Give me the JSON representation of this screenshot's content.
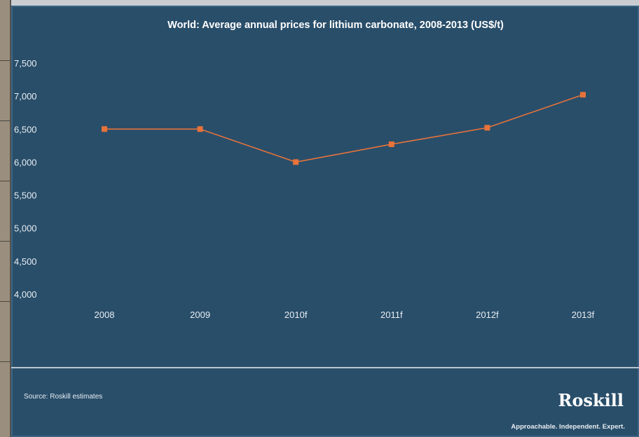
{
  "chart_data": {
    "type": "line",
    "title": "World: Average annual prices for lithium carbonate, 2008-2013 (US$/t)",
    "categories": [
      "2008",
      "2009",
      "2010f",
      "2011f",
      "2012f",
      "2013f"
    ],
    "series": [
      {
        "values": [
          6500,
          6500,
          6000,
          6270,
          6520,
          7020
        ]
      }
    ],
    "ylim": [
      4000,
      7500
    ],
    "yticks": [
      4000,
      4500,
      5000,
      5500,
      6000,
      6500,
      7000,
      7500
    ],
    "ytick_labels": [
      "4,000",
      "4,500",
      "5,000",
      "5,500",
      "6,000",
      "6,500",
      "7,000",
      "7,500"
    ],
    "grid": false,
    "colors": {
      "line": "#e8733a",
      "background": "#294e6a",
      "text": "#ffffff"
    }
  },
  "footer": {
    "source": "Source: Roskill estimates",
    "brand": "Roskill",
    "tagline": "Approachable. Independent. Expert."
  }
}
